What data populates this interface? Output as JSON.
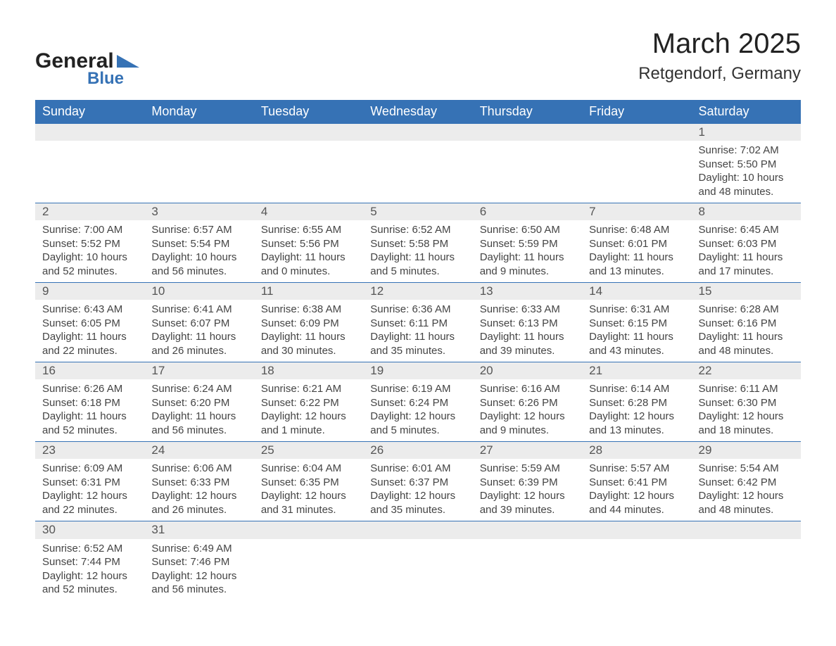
{
  "brand": {
    "word1": "General",
    "word2": "Blue",
    "accent_color": "#3672b5",
    "text_color": "#222222"
  },
  "title": {
    "month_year": "March 2025",
    "location": "Retgendorf, Germany",
    "title_fontsize": 40,
    "location_fontsize": 24
  },
  "calendar": {
    "type": "table",
    "header_bg": "#3672b5",
    "header_fg": "#ffffff",
    "daynum_bg": "#ececec",
    "row_border": "#3672b5",
    "body_fg": "#444444",
    "columns": [
      "Sunday",
      "Monday",
      "Tuesday",
      "Wednesday",
      "Thursday",
      "Friday",
      "Saturday"
    ],
    "weeks": [
      [
        null,
        null,
        null,
        null,
        null,
        null,
        {
          "n": "1",
          "sr": "Sunrise: 7:02 AM",
          "ss": "Sunset: 5:50 PM",
          "d1": "Daylight: 10 hours",
          "d2": "and 48 minutes."
        }
      ],
      [
        {
          "n": "2",
          "sr": "Sunrise: 7:00 AM",
          "ss": "Sunset: 5:52 PM",
          "d1": "Daylight: 10 hours",
          "d2": "and 52 minutes."
        },
        {
          "n": "3",
          "sr": "Sunrise: 6:57 AM",
          "ss": "Sunset: 5:54 PM",
          "d1": "Daylight: 10 hours",
          "d2": "and 56 minutes."
        },
        {
          "n": "4",
          "sr": "Sunrise: 6:55 AM",
          "ss": "Sunset: 5:56 PM",
          "d1": "Daylight: 11 hours",
          "d2": "and 0 minutes."
        },
        {
          "n": "5",
          "sr": "Sunrise: 6:52 AM",
          "ss": "Sunset: 5:58 PM",
          "d1": "Daylight: 11 hours",
          "d2": "and 5 minutes."
        },
        {
          "n": "6",
          "sr": "Sunrise: 6:50 AM",
          "ss": "Sunset: 5:59 PM",
          "d1": "Daylight: 11 hours",
          "d2": "and 9 minutes."
        },
        {
          "n": "7",
          "sr": "Sunrise: 6:48 AM",
          "ss": "Sunset: 6:01 PM",
          "d1": "Daylight: 11 hours",
          "d2": "and 13 minutes."
        },
        {
          "n": "8",
          "sr": "Sunrise: 6:45 AM",
          "ss": "Sunset: 6:03 PM",
          "d1": "Daylight: 11 hours",
          "d2": "and 17 minutes."
        }
      ],
      [
        {
          "n": "9",
          "sr": "Sunrise: 6:43 AM",
          "ss": "Sunset: 6:05 PM",
          "d1": "Daylight: 11 hours",
          "d2": "and 22 minutes."
        },
        {
          "n": "10",
          "sr": "Sunrise: 6:41 AM",
          "ss": "Sunset: 6:07 PM",
          "d1": "Daylight: 11 hours",
          "d2": "and 26 minutes."
        },
        {
          "n": "11",
          "sr": "Sunrise: 6:38 AM",
          "ss": "Sunset: 6:09 PM",
          "d1": "Daylight: 11 hours",
          "d2": "and 30 minutes."
        },
        {
          "n": "12",
          "sr": "Sunrise: 6:36 AM",
          "ss": "Sunset: 6:11 PM",
          "d1": "Daylight: 11 hours",
          "d2": "and 35 minutes."
        },
        {
          "n": "13",
          "sr": "Sunrise: 6:33 AM",
          "ss": "Sunset: 6:13 PM",
          "d1": "Daylight: 11 hours",
          "d2": "and 39 minutes."
        },
        {
          "n": "14",
          "sr": "Sunrise: 6:31 AM",
          "ss": "Sunset: 6:15 PM",
          "d1": "Daylight: 11 hours",
          "d2": "and 43 minutes."
        },
        {
          "n": "15",
          "sr": "Sunrise: 6:28 AM",
          "ss": "Sunset: 6:16 PM",
          "d1": "Daylight: 11 hours",
          "d2": "and 48 minutes."
        }
      ],
      [
        {
          "n": "16",
          "sr": "Sunrise: 6:26 AM",
          "ss": "Sunset: 6:18 PM",
          "d1": "Daylight: 11 hours",
          "d2": "and 52 minutes."
        },
        {
          "n": "17",
          "sr": "Sunrise: 6:24 AM",
          "ss": "Sunset: 6:20 PM",
          "d1": "Daylight: 11 hours",
          "d2": "and 56 minutes."
        },
        {
          "n": "18",
          "sr": "Sunrise: 6:21 AM",
          "ss": "Sunset: 6:22 PM",
          "d1": "Daylight: 12 hours",
          "d2": "and 1 minute."
        },
        {
          "n": "19",
          "sr": "Sunrise: 6:19 AM",
          "ss": "Sunset: 6:24 PM",
          "d1": "Daylight: 12 hours",
          "d2": "and 5 minutes."
        },
        {
          "n": "20",
          "sr": "Sunrise: 6:16 AM",
          "ss": "Sunset: 6:26 PM",
          "d1": "Daylight: 12 hours",
          "d2": "and 9 minutes."
        },
        {
          "n": "21",
          "sr": "Sunrise: 6:14 AM",
          "ss": "Sunset: 6:28 PM",
          "d1": "Daylight: 12 hours",
          "d2": "and 13 minutes."
        },
        {
          "n": "22",
          "sr": "Sunrise: 6:11 AM",
          "ss": "Sunset: 6:30 PM",
          "d1": "Daylight: 12 hours",
          "d2": "and 18 minutes."
        }
      ],
      [
        {
          "n": "23",
          "sr": "Sunrise: 6:09 AM",
          "ss": "Sunset: 6:31 PM",
          "d1": "Daylight: 12 hours",
          "d2": "and 22 minutes."
        },
        {
          "n": "24",
          "sr": "Sunrise: 6:06 AM",
          "ss": "Sunset: 6:33 PM",
          "d1": "Daylight: 12 hours",
          "d2": "and 26 minutes."
        },
        {
          "n": "25",
          "sr": "Sunrise: 6:04 AM",
          "ss": "Sunset: 6:35 PM",
          "d1": "Daylight: 12 hours",
          "d2": "and 31 minutes."
        },
        {
          "n": "26",
          "sr": "Sunrise: 6:01 AM",
          "ss": "Sunset: 6:37 PM",
          "d1": "Daylight: 12 hours",
          "d2": "and 35 minutes."
        },
        {
          "n": "27",
          "sr": "Sunrise: 5:59 AM",
          "ss": "Sunset: 6:39 PM",
          "d1": "Daylight: 12 hours",
          "d2": "and 39 minutes."
        },
        {
          "n": "28",
          "sr": "Sunrise: 5:57 AM",
          "ss": "Sunset: 6:41 PM",
          "d1": "Daylight: 12 hours",
          "d2": "and 44 minutes."
        },
        {
          "n": "29",
          "sr": "Sunrise: 5:54 AM",
          "ss": "Sunset: 6:42 PM",
          "d1": "Daylight: 12 hours",
          "d2": "and 48 minutes."
        }
      ],
      [
        {
          "n": "30",
          "sr": "Sunrise: 6:52 AM",
          "ss": "Sunset: 7:44 PM",
          "d1": "Daylight: 12 hours",
          "d2": "and 52 minutes."
        },
        {
          "n": "31",
          "sr": "Sunrise: 6:49 AM",
          "ss": "Sunset: 7:46 PM",
          "d1": "Daylight: 12 hours",
          "d2": "and 56 minutes."
        },
        null,
        null,
        null,
        null,
        null
      ]
    ]
  }
}
